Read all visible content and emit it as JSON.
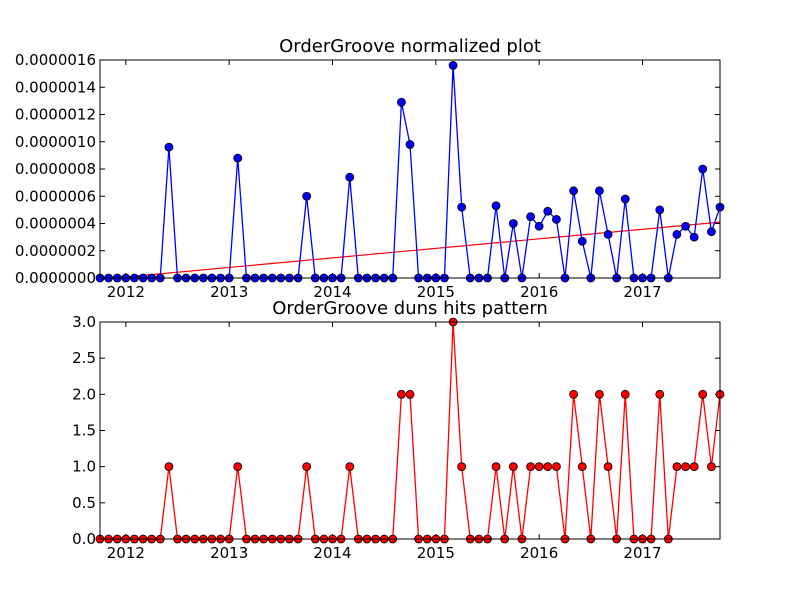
{
  "chart_data": [
    {
      "type": "line",
      "title": "OrderGroove normalized plot",
      "xlabel": "",
      "ylabel": "",
      "x_tick_labels": [
        "2012",
        "2013",
        "2014",
        "2015",
        "2016",
        "2017"
      ],
      "x_tick_values": [
        2012,
        2013,
        2014,
        2015,
        2016,
        2017
      ],
      "xlim": [
        2011.75,
        2017.75
      ],
      "y_tick_labels": [
        "0.0000000",
        "0.0000002",
        "0.0000004",
        "0.0000006",
        "0.0000008",
        "0.0000010",
        "0.0000012",
        "0.0000014",
        "0.0000016"
      ],
      "y_tick_values": [
        0,
        2e-07,
        4e-07,
        6e-07,
        8e-07,
        1e-06,
        1.2e-06,
        1.4e-06,
        1.6e-06
      ],
      "ylim": [
        0,
        1.6e-06
      ],
      "grid": false,
      "series": [
        {
          "color": "#0000ff",
          "marker_color": "#0000ff",
          "x": [
            2011.75,
            2011.833,
            2011.917,
            2012.0,
            2012.083,
            2012.167,
            2012.25,
            2012.333,
            2012.417,
            2012.5,
            2012.583,
            2012.667,
            2012.75,
            2012.833,
            2012.917,
            2013.0,
            2013.083,
            2013.167,
            2013.25,
            2013.333,
            2013.417,
            2013.5,
            2013.583,
            2013.667,
            2013.75,
            2013.833,
            2013.917,
            2014.0,
            2014.083,
            2014.167,
            2014.25,
            2014.333,
            2014.417,
            2014.5,
            2014.583,
            2014.667,
            2014.75,
            2014.833,
            2014.917,
            2015.0,
            2015.083,
            2015.167,
            2015.25,
            2015.333,
            2015.417,
            2015.5,
            2015.583,
            2015.667,
            2015.75,
            2015.833,
            2015.917,
            2016.0,
            2016.083,
            2016.167,
            2016.25,
            2016.333,
            2016.417,
            2016.5,
            2016.583,
            2016.667,
            2016.75,
            2016.833,
            2016.917,
            2017.0,
            2017.083,
            2017.167,
            2017.25,
            2017.333,
            2017.417,
            2017.5,
            2017.583,
            2017.667,
            2017.75
          ],
          "values": [
            0,
            0,
            0,
            0,
            0,
            0,
            0,
            0,
            9.6e-07,
            0,
            0,
            0,
            0,
            0,
            0,
            0,
            8.8e-07,
            0,
            0,
            0,
            0,
            0,
            0,
            0,
            6e-07,
            0,
            0,
            0,
            0,
            7.4e-07,
            0,
            0,
            0,
            0,
            0,
            1.29e-06,
            9.8e-07,
            0,
            0,
            0,
            0,
            1.56e-06,
            5.2e-07,
            0,
            0,
            0,
            5.3e-07,
            0,
            4e-07,
            0,
            4.5e-07,
            3.8e-07,
            4.9e-07,
            4.3e-07,
            0,
            6.4e-07,
            2.7e-07,
            0,
            6.4e-07,
            3.2e-07,
            0,
            5.8e-07,
            0,
            0,
            0,
            5e-07,
            0,
            3.2e-07,
            3.8e-07,
            3e-07,
            8e-07,
            3.4e-07,
            5.2e-07
          ]
        }
      ],
      "trendline": {
        "color": "#ff0000",
        "x": [
          2011.75,
          2017.75
        ],
        "values": [
          -1e-08,
          4.1e-07
        ]
      }
    },
    {
      "type": "line",
      "title": "OrderGroove duns hits pattern",
      "xlabel": "",
      "ylabel": "",
      "x_tick_labels": [
        "2012",
        "2013",
        "2014",
        "2015",
        "2016",
        "2017"
      ],
      "x_tick_values": [
        2012,
        2013,
        2014,
        2015,
        2016,
        2017
      ],
      "xlim": [
        2011.75,
        2017.75
      ],
      "y_tick_labels": [
        "0.0",
        "0.5",
        "1.0",
        "1.5",
        "2.0",
        "2.5",
        "3.0"
      ],
      "y_tick_values": [
        0,
        0.5,
        1.0,
        1.5,
        2.0,
        2.5,
        3.0
      ],
      "ylim": [
        0,
        3.0
      ],
      "grid": false,
      "series": [
        {
          "color": "#ff0000",
          "marker_color": "#ff0000",
          "x": [
            2011.75,
            2011.833,
            2011.917,
            2012.0,
            2012.083,
            2012.167,
            2012.25,
            2012.333,
            2012.417,
            2012.5,
            2012.583,
            2012.667,
            2012.75,
            2012.833,
            2012.917,
            2013.0,
            2013.083,
            2013.167,
            2013.25,
            2013.333,
            2013.417,
            2013.5,
            2013.583,
            2013.667,
            2013.75,
            2013.833,
            2013.917,
            2014.0,
            2014.083,
            2014.167,
            2014.25,
            2014.333,
            2014.417,
            2014.5,
            2014.583,
            2014.667,
            2014.75,
            2014.833,
            2014.917,
            2015.0,
            2015.083,
            2015.167,
            2015.25,
            2015.333,
            2015.417,
            2015.5,
            2015.583,
            2015.667,
            2015.75,
            2015.833,
            2015.917,
            2016.0,
            2016.083,
            2016.167,
            2016.25,
            2016.333,
            2016.417,
            2016.5,
            2016.583,
            2016.667,
            2016.75,
            2016.833,
            2016.917,
            2017.0,
            2017.083,
            2017.167,
            2017.25,
            2017.333,
            2017.417,
            2017.5,
            2017.583,
            2017.667,
            2017.75
          ],
          "values": [
            0,
            0,
            0,
            0,
            0,
            0,
            0,
            0,
            1,
            0,
            0,
            0,
            0,
            0,
            0,
            0,
            1,
            0,
            0,
            0,
            0,
            0,
            0,
            0,
            1,
            0,
            0,
            0,
            0,
            1,
            0,
            0,
            0,
            0,
            0,
            2,
            2,
            0,
            0,
            0,
            0,
            3,
            1,
            0,
            0,
            0,
            1,
            0,
            1,
            0,
            1,
            1,
            1,
            1,
            0,
            2,
            1,
            0,
            2,
            1,
            0,
            2,
            0,
            0,
            0,
            2,
            0,
            1,
            1,
            1,
            2,
            1,
            2
          ]
        }
      ]
    }
  ]
}
